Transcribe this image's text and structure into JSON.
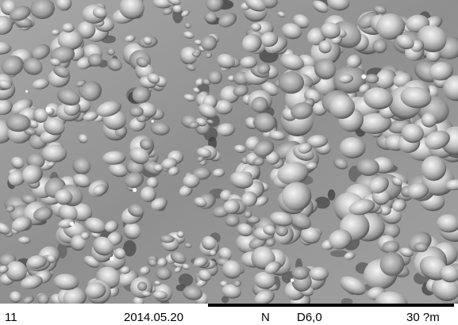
{
  "image": {
    "subject": "micrograph-surface",
    "tone": "grayscale"
  },
  "info_bar": {
    "magnification": "11",
    "date": "2014.05.20",
    "mode": "N",
    "detail": "D6,0",
    "scale_label": "30 ?m"
  },
  "colors": {
    "background": "#ffffff",
    "text": "#000000",
    "scale_bar": "#000000",
    "image_mid_gray": "#9a9a9a"
  }
}
